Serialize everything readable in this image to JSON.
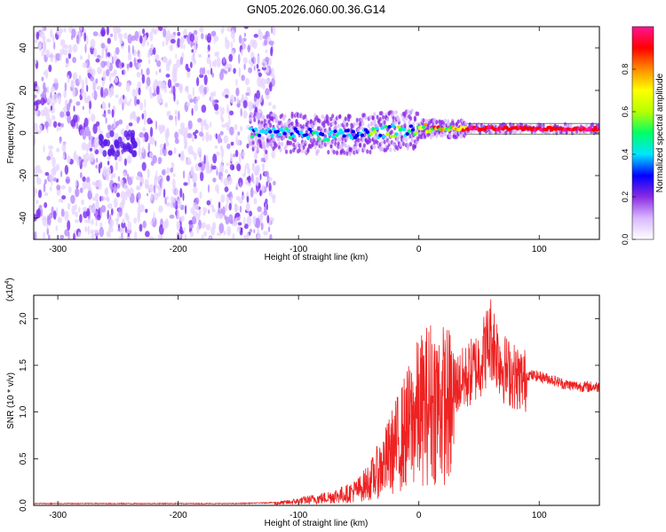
{
  "title": "GN05.2026.060.00.36.G14",
  "chart_data": [
    {
      "type": "heatmap",
      "xlabel": "Height of straight line (km)",
      "ylabel": "Frequency (Hz)",
      "xlim": [
        -320,
        150
      ],
      "ylim": [
        -50,
        50
      ],
      "x_ticks": [
        -300,
        -200,
        -100,
        0,
        100
      ],
      "y_ticks": [
        -40,
        -20,
        0,
        20,
        40
      ],
      "colorbar": {
        "label": "Normalized spectral amplitude",
        "range": [
          0,
          1
        ],
        "ticks": [
          "0.0",
          "0.2",
          "0.4",
          "0.6",
          "0.8"
        ],
        "colors": [
          "#ffffff",
          "#d9b8ff",
          "#8a2be2",
          "#0000ff",
          "#00e5ff",
          "#00ff66",
          "#b6ff00",
          "#ffff00",
          "#ff8c00",
          "#ff0000",
          "#ff1493"
        ]
      },
      "noise_region": {
        "x": [
          -320,
          -120
        ],
        "y": [
          -50,
          50
        ]
      },
      "signal_trace": [
        {
          "x": -140,
          "y": 0
        },
        {
          "x": -120,
          "y": 0
        },
        {
          "x": -100,
          "y": 0
        },
        {
          "x": -80,
          "y": -1
        },
        {
          "x": -60,
          "y": -1
        },
        {
          "x": -40,
          "y": 0
        },
        {
          "x": -20,
          "y": 1
        },
        {
          "x": 0,
          "y": 2
        },
        {
          "x": 20,
          "y": 2
        },
        {
          "x": 40,
          "y": 2
        },
        {
          "x": 60,
          "y": 2
        },
        {
          "x": 80,
          "y": 2
        },
        {
          "x": 100,
          "y": 2
        },
        {
          "x": 120,
          "y": 2
        },
        {
          "x": 150,
          "y": 2
        }
      ],
      "grid": false
    },
    {
      "type": "line",
      "xlabel": "Height of straight line (km)",
      "ylabel": "SNR (10 * v/v)",
      "y_scale_label": "(x10",
      "y_scale_exponent": "4",
      "xlim": [
        -320,
        150
      ],
      "ylim": [
        0,
        2.25
      ],
      "x_ticks": [
        -300,
        -200,
        -100,
        0,
        100
      ],
      "y_ticks": [
        "0.0",
        "0.5",
        "1.0",
        "1.5",
        "2.0"
      ],
      "series": [
        {
          "color": "#ee2222",
          "x": [
            -320,
            -250,
            -200,
            -150,
            -120,
            -110,
            -100,
            -90,
            -80,
            -70,
            -60,
            -50,
            -40,
            -30,
            -20,
            -10,
            0,
            10,
            20,
            30,
            40,
            50,
            60,
            70,
            80,
            90,
            100,
            110,
            120,
            130,
            140,
            150
          ],
          "y": [
            0.02,
            0.02,
            0.02,
            0.02,
            0.03,
            0.04,
            0.06,
            0.08,
            0.1,
            0.13,
            0.16,
            0.22,
            0.35,
            0.55,
            0.8,
            1.05,
            1.3,
            1.45,
            1.4,
            1.35,
            1.45,
            1.6,
            1.9,
            1.55,
            1.45,
            1.4,
            1.38,
            1.35,
            1.3,
            1.28,
            1.27,
            1.27
          ]
        }
      ],
      "grid": false
    }
  ]
}
